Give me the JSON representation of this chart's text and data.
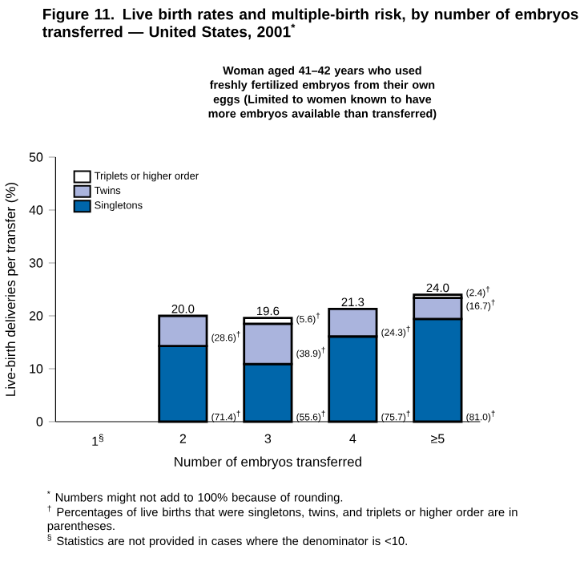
{
  "chart_data": {
    "type": "bar",
    "stacked": true,
    "title": "Figure 11. Live birth rates and multiple-birth risk, by number of embryos transferred — United States, 2001$^{*}$",
    "subtitle": "Woman aged 41–42 years who used freshly fertilized embryos from their own eggs (Limited to women known to have more embryos available than transferred)",
    "xlabel": "Number of embryos transferred",
    "ylabel": "Live-birth deliveries per transfer (%)",
    "categories": [
      "1$^{§}$",
      "2",
      "3",
      "4",
      "≥5"
    ],
    "series": [
      {
        "name": "Singletons",
        "color": "#0066aa",
        "values": [
          null,
          14.3,
          10.9,
          16.1,
          19.4
        ]
      },
      {
        "name": "Twins",
        "color": "#aab4dd",
        "values": [
          null,
          5.7,
          7.6,
          5.2,
          4.0
        ]
      },
      {
        "name": "Triplets or higher order",
        "color": "#ffffff",
        "values": [
          null,
          0,
          1.1,
          0,
          0.6
        ]
      }
    ],
    "totals": [
      null,
      "20.0",
      "19.6",
      "21.3",
      "24.0"
    ],
    "ylim": [
      0,
      50
    ],
    "yticks": [
      0,
      10,
      20,
      30,
      40,
      50
    ],
    "legend": "top left",
    "annotations": [
      "(71.4)$^{†}$",
      "(28.6)$^{†}$",
      "(55.6)$^{†}$",
      "(38.9)$^{†}$",
      "(5.6)$^{†}$",
      "(75.7)$^{†}$",
      "(24.3)$^{†}$",
      "(81.0)$^{†}$",
      "(16.7)$^{†}$",
      "(2.4)$^{†}$",
      "$^{*}$ Numbers might not add to 100% because of rounding.",
      "$^{†}$ Percentages of live births that were singletons, twins, and triplets or higher order are in parentheses.",
      "$^{§}$ Statistics are not provided in cases where the denominator is <10."
    ]
  }
}
